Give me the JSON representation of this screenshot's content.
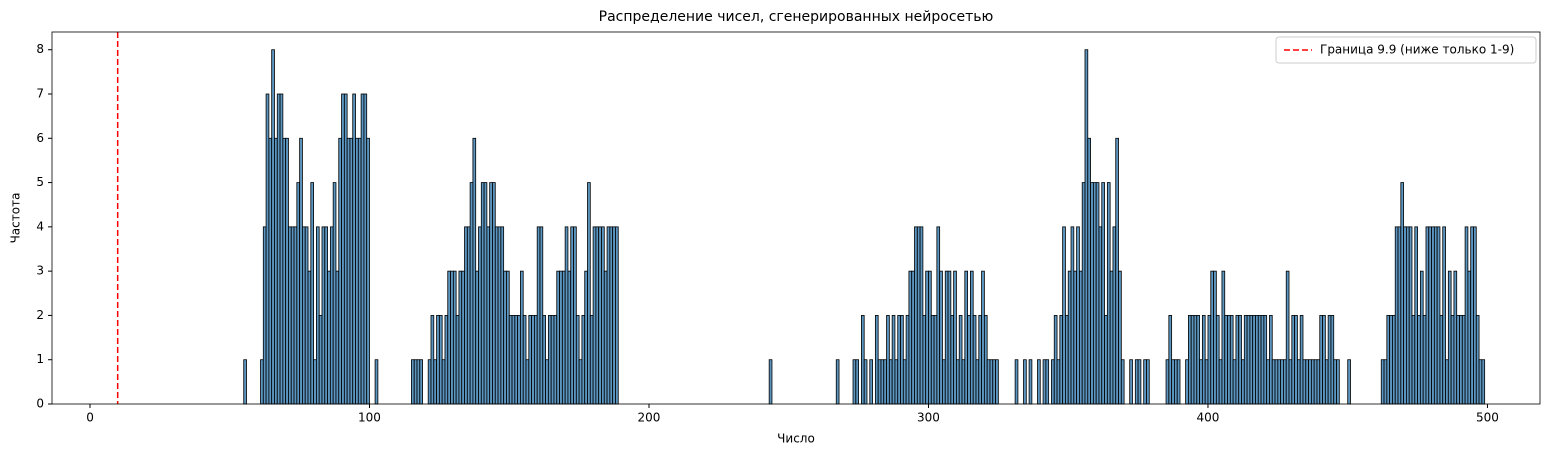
{
  "chart_data": {
    "type": "histogram",
    "title": "Распределение чисел, сгенерированных нейросетью",
    "xlabel": "Число",
    "ylabel": "Частота",
    "xlim": [
      -13.6,
      518.8
    ],
    "ylim": [
      0,
      8.4
    ],
    "xticks": [
      0,
      100,
      200,
      300,
      400,
      500
    ],
    "yticks": [
      0,
      1,
      2,
      3,
      4,
      5,
      6,
      7,
      8
    ],
    "grid": false,
    "legend": "upper right",
    "color": "#4a89b8",
    "edgecolor": "#000000",
    "x": [
      55,
      61,
      62,
      63,
      64,
      65,
      66,
      67,
      68,
      69,
      70,
      71,
      72,
      73,
      74,
      75,
      76,
      77,
      78,
      79,
      80,
      81,
      82,
      83,
      84,
      85,
      86,
      87,
      88,
      89,
      90,
      91,
      92,
      93,
      94,
      95,
      96,
      97,
      98,
      99,
      102,
      115,
      116,
      117,
      118,
      121,
      122,
      123,
      124,
      125,
      126,
      127,
      128,
      129,
      130,
      131,
      132,
      133,
      134,
      135,
      136,
      137,
      138,
      139,
      140,
      141,
      142,
      143,
      144,
      145,
      146,
      147,
      148,
      149,
      150,
      151,
      152,
      153,
      154,
      155,
      156,
      157,
      158,
      159,
      160,
      161,
      162,
      163,
      164,
      165,
      166,
      167,
      168,
      169,
      170,
      171,
      172,
      173,
      174,
      175,
      176,
      177,
      178,
      179,
      180,
      181,
      182,
      183,
      184,
      185,
      186,
      187,
      188,
      243,
      267,
      273,
      274,
      276,
      277,
      279,
      281,
      282,
      283,
      284,
      285,
      286,
      287,
      288,
      289,
      290,
      291,
      292,
      293,
      294,
      295,
      296,
      297,
      298,
      299,
      300,
      301,
      302,
      303,
      304,
      305,
      306,
      307,
      308,
      309,
      310,
      311,
      312,
      313,
      314,
      315,
      316,
      317,
      318,
      319,
      320,
      321,
      322,
      323,
      324,
      331,
      334,
      336,
      339,
      341,
      342,
      344,
      345,
      346,
      347,
      348,
      349,
      350,
      351,
      352,
      353,
      354,
      355,
      356,
      357,
      358,
      359,
      360,
      361,
      362,
      363,
      364,
      365,
      366,
      367,
      368,
      369,
      372,
      374,
      375,
      377,
      378,
      385,
      386,
      387,
      388,
      389,
      392,
      393,
      394,
      395,
      396,
      397,
      398,
      399,
      400,
      401,
      402,
      403,
      404,
      405,
      406,
      407,
      408,
      409,
      410,
      411,
      412,
      413,
      414,
      415,
      416,
      417,
      418,
      419,
      420,
      421,
      422,
      423,
      424,
      425,
      426,
      427,
      428,
      429,
      430,
      431,
      432,
      433,
      434,
      435,
      436,
      437,
      438,
      439,
      440,
      441,
      442,
      443,
      444,
      445,
      446,
      450,
      462,
      463,
      464,
      465,
      466,
      467,
      468,
      469,
      470,
      471,
      472,
      473,
      474,
      475,
      476,
      477,
      478,
      479,
      480,
      481,
      482,
      483,
      484,
      485,
      486,
      487,
      488,
      489,
      490,
      491,
      492,
      493,
      494,
      495,
      496,
      497,
      498
    ],
    "values": [
      1,
      1,
      4,
      7,
      6,
      8,
      6,
      7,
      7,
      6,
      6,
      4,
      4,
      4,
      5,
      6,
      4,
      4,
      3,
      5,
      1,
      4,
      2,
      4,
      4,
      3,
      4,
      5,
      3,
      6,
      7,
      7,
      6,
      6,
      7,
      6,
      6,
      7,
      7,
      6,
      1,
      1,
      1,
      1,
      1,
      1,
      2,
      1,
      2,
      2,
      1,
      2,
      3,
      3,
      3,
      2,
      3,
      3,
      4,
      4,
      5,
      6,
      3,
      4,
      5,
      5,
      4,
      5,
      5,
      4,
      4,
      4,
      3,
      3,
      2,
      2,
      2,
      2,
      3,
      2,
      1,
      2,
      2,
      2,
      4,
      4,
      2,
      1,
      2,
      2,
      2,
      3,
      3,
      3,
      4,
      3,
      4,
      4,
      2,
      1,
      2,
      3,
      5,
      2,
      4,
      4,
      4,
      4,
      3,
      4,
      4,
      4,
      4,
      1,
      1,
      1,
      1,
      2,
      1,
      1,
      2,
      1,
      1,
      1,
      2,
      1,
      2,
      1,
      2,
      2,
      1,
      2,
      3,
      3,
      4,
      4,
      4,
      2,
      3,
      3,
      2,
      2,
      4,
      3,
      1,
      3,
      3,
      2,
      3,
      1,
      2,
      1,
      3,
      2,
      3,
      2,
      1,
      2,
      3,
      2,
      1,
      1,
      1,
      1,
      1,
      1,
      1,
      1,
      1,
      1,
      1,
      2,
      1,
      2,
      4,
      2,
      3,
      4,
      3,
      4,
      3,
      5,
      8,
      6,
      5,
      5,
      5,
      4,
      5,
      2,
      5,
      3,
      4,
      6,
      3,
      1,
      1,
      1,
      1,
      1,
      1,
      1,
      2,
      1,
      1,
      1,
      1,
      2,
      2,
      2,
      2,
      1,
      2,
      1,
      2,
      3,
      3,
      2,
      1,
      3,
      2,
      2,
      2,
      1,
      2,
      2,
      1,
      2,
      2,
      2,
      2,
      2,
      2,
      2,
      2,
      1,
      2,
      1,
      1,
      1,
      1,
      1,
      3,
      1,
      2,
      2,
      1,
      2,
      1,
      1,
      1,
      1,
      1,
      1,
      2,
      2,
      1,
      2,
      2,
      1,
      1,
      1,
      1,
      1,
      2,
      2,
      2,
      4,
      4,
      5,
      4,
      4,
      4,
      2,
      4,
      2,
      3,
      2,
      4,
      4,
      4,
      4,
      4,
      2,
      4,
      1,
      3,
      2,
      3,
      2,
      2,
      2,
      4,
      3,
      4,
      4,
      2,
      1,
      1
    ],
    "vline": {
      "value": 9.9,
      "name": "Граница 9.9 (ниже только 1-9)",
      "color": "#ff0000"
    }
  }
}
